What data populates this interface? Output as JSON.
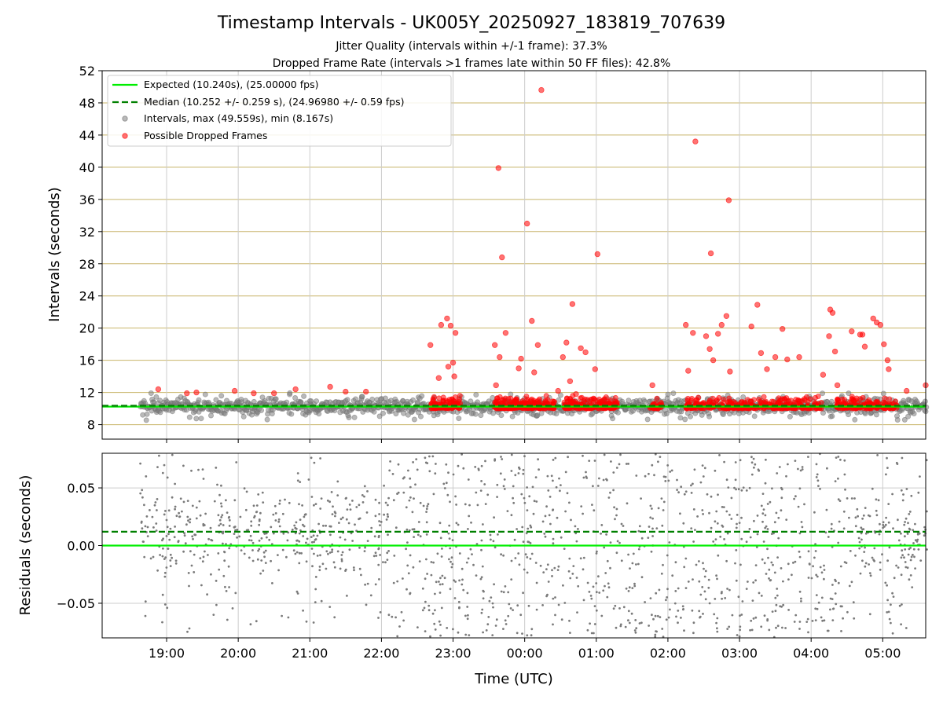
{
  "chart_data": [
    {
      "type": "scatter",
      "title": "Timestamp Intervals - UK005Y_20250927_183819_707639",
      "subtitles": [
        "Jitter Quality (intervals within +/-1 frame): 37.3%",
        "Dropped Frame Rate (intervals >1 frames late within 50 FF files): 42.8%"
      ],
      "ylabel": "Intervals (seconds)",
      "ylim": [
        6.2,
        52
      ],
      "yticks": [
        "8",
        "12",
        "16",
        "20",
        "24",
        "28",
        "32",
        "36",
        "40",
        "44",
        "48",
        "52"
      ],
      "xlim_hours": [
        18.1,
        29.6
      ],
      "x_data_range_utc": [
        "18:38",
        "05:37"
      ],
      "grid": true,
      "legend_position": "top-left",
      "expected_interval": 10.24,
      "median_interval": 10.252,
      "legend": [
        "Expected (10.240s), (25.00000 fps)",
        "Median (10.252 +/- 0.259 s), (24.96980 +/- 0.59 fps)",
        "Intervals, max (49.559s), min (8.167s)",
        "Possible Dropped Frames"
      ],
      "series": [
        {
          "name": "Intervals, max (49.559s), min (8.167s)",
          "color": "#808080",
          "typical_range": [
            8.2,
            12.3
          ],
          "max": 49.559,
          "min": 8.167
        },
        {
          "name": "Possible Dropped Frames",
          "color": "#ff0000",
          "dense_band": [
            10.0,
            11.2
          ],
          "points": [
            {
              "x": "18:53",
              "y": 12.4
            },
            {
              "x": "19:17",
              "y": 11.9
            },
            {
              "x": "19:25",
              "y": 12.0
            },
            {
              "x": "19:57",
              "y": 12.2
            },
            {
              "x": "20:13",
              "y": 11.9
            },
            {
              "x": "20:30",
              "y": 11.9
            },
            {
              "x": "20:48",
              "y": 12.4
            },
            {
              "x": "21:17",
              "y": 12.7
            },
            {
              "x": "21:30",
              "y": 12.1
            },
            {
              "x": "21:47",
              "y": 12.1
            },
            {
              "x": "22:41",
              "y": 17.9
            },
            {
              "x": "22:48",
              "y": 13.8
            },
            {
              "x": "22:50",
              "y": 20.4
            },
            {
              "x": "22:55",
              "y": 21.2
            },
            {
              "x": "22:56",
              "y": 15.2
            },
            {
              "x": "22:58",
              "y": 20.3
            },
            {
              "x": "23:00",
              "y": 15.7
            },
            {
              "x": "23:01",
              "y": 14.0
            },
            {
              "x": "23:02",
              "y": 19.4
            },
            {
              "x": "23:35",
              "y": 17.9
            },
            {
              "x": "23:36",
              "y": 12.9
            },
            {
              "x": "23:38",
              "y": 39.9
            },
            {
              "x": "23:39",
              "y": 16.4
            },
            {
              "x": "23:41",
              "y": 28.8
            },
            {
              "x": "23:44",
              "y": 19.4
            },
            {
              "x": "23:55",
              "y": 15.0
            },
            {
              "x": "23:57",
              "y": 16.2
            },
            {
              "x": "00:02",
              "y": 33.0
            },
            {
              "x": "00:06",
              "y": 20.9
            },
            {
              "x": "00:08",
              "y": 14.5
            },
            {
              "x": "00:11",
              "y": 17.9
            },
            {
              "x": "00:14",
              "y": 49.6
            },
            {
              "x": "00:28",
              "y": 12.2
            },
            {
              "x": "00:32",
              "y": 16.4
            },
            {
              "x": "00:35",
              "y": 18.2
            },
            {
              "x": "00:38",
              "y": 13.4
            },
            {
              "x": "00:40",
              "y": 23.0
            },
            {
              "x": "00:43",
              "y": 11.8
            },
            {
              "x": "00:47",
              "y": 17.5
            },
            {
              "x": "00:51",
              "y": 17.0
            },
            {
              "x": "00:59",
              "y": 14.9
            },
            {
              "x": "01:01",
              "y": 29.2
            },
            {
              "x": "01:47",
              "y": 12.9
            },
            {
              "x": "02:15",
              "y": 20.4
            },
            {
              "x": "02:17",
              "y": 14.7
            },
            {
              "x": "02:21",
              "y": 19.4
            },
            {
              "x": "02:23",
              "y": 43.2
            },
            {
              "x": "02:32",
              "y": 19.0
            },
            {
              "x": "02:35",
              "y": 17.4
            },
            {
              "x": "02:36",
              "y": 29.3
            },
            {
              "x": "02:38",
              "y": 16.0
            },
            {
              "x": "02:42",
              "y": 19.3
            },
            {
              "x": "02:45",
              "y": 20.4
            },
            {
              "x": "02:49",
              "y": 21.5
            },
            {
              "x": "02:51",
              "y": 35.9
            },
            {
              "x": "02:52",
              "y": 14.6
            },
            {
              "x": "03:10",
              "y": 20.2
            },
            {
              "x": "03:15",
              "y": 22.9
            },
            {
              "x": "03:18",
              "y": 16.9
            },
            {
              "x": "03:23",
              "y": 14.9
            },
            {
              "x": "03:30",
              "y": 16.4
            },
            {
              "x": "03:36",
              "y": 19.9
            },
            {
              "x": "03:40",
              "y": 16.1
            },
            {
              "x": "03:50",
              "y": 16.4
            },
            {
              "x": "04:10",
              "y": 14.2
            },
            {
              "x": "04:15",
              "y": 19.0
            },
            {
              "x": "04:16",
              "y": 22.3
            },
            {
              "x": "04:18",
              "y": 21.9
            },
            {
              "x": "04:20",
              "y": 17.1
            },
            {
              "x": "04:22",
              "y": 12.9
            },
            {
              "x": "04:34",
              "y": 19.6
            },
            {
              "x": "04:41",
              "y": 19.2
            },
            {
              "x": "04:43",
              "y": 19.2
            },
            {
              "x": "04:45",
              "y": 17.7
            },
            {
              "x": "04:52",
              "y": 21.2
            },
            {
              "x": "04:55",
              "y": 20.7
            },
            {
              "x": "04:58",
              "y": 20.4
            },
            {
              "x": "05:01",
              "y": 18.0
            },
            {
              "x": "05:04",
              "y": 16.0
            },
            {
              "x": "05:05",
              "y": 14.9
            },
            {
              "x": "05:20",
              "y": 12.2
            },
            {
              "x": "05:36",
              "y": 12.9
            }
          ]
        }
      ]
    },
    {
      "type": "scatter",
      "ylabel": "Residuals (seconds)",
      "xlabel": "Time (UTC)",
      "ylim": [
        -0.08,
        0.08
      ],
      "yticks": [
        "−0.05",
        "0.00",
        "0.05"
      ],
      "xticks": [
        "19:00",
        "20:00",
        "21:00",
        "22:00",
        "23:00",
        "00:00",
        "01:00",
        "02:00",
        "03:00",
        "04:00",
        "05:00"
      ],
      "grid": true,
      "expected_residual": 0.0,
      "median_residual": 0.012,
      "series": [
        {
          "color": "#808080",
          "dense_band_residual": [
            -0.03,
            0.05
          ],
          "spread_residual": [
            -0.08,
            0.08
          ]
        }
      ]
    }
  ]
}
